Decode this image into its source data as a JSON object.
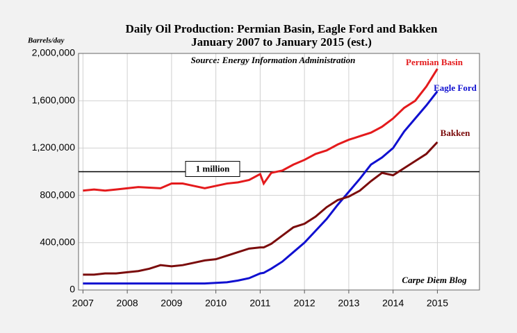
{
  "chart_data": {
    "type": "line",
    "title": "Daily Oil Production: Permian Basin, Eagle Ford and Bakken",
    "subtitle": "January 2007 to January 2015 (est.)",
    "y_label": "Barrels/day",
    "source": "Source: Energy Information Administration",
    "credit": "Carpe Diem Blog",
    "x": [
      2007,
      2007.25,
      2007.5,
      2007.75,
      2008,
      2008.25,
      2008.5,
      2008.75,
      2009,
      2009.25,
      2009.5,
      2009.75,
      2010,
      2010.25,
      2010.5,
      2010.75,
      2011,
      2011.08,
      2011.25,
      2011.5,
      2011.75,
      2012,
      2012.25,
      2012.5,
      2012.75,
      2013,
      2013.25,
      2013.5,
      2013.75,
      2014,
      2014.25,
      2014.5,
      2014.75,
      2015
    ],
    "series": [
      {
        "name": "Permian Basin",
        "color": "#e41a1c",
        "values": [
          840000,
          850000,
          840000,
          850000,
          860000,
          870000,
          865000,
          860000,
          900000,
          900000,
          880000,
          860000,
          880000,
          900000,
          910000,
          930000,
          980000,
          900000,
          990000,
          1010000,
          1060000,
          1100000,
          1150000,
          1180000,
          1230000,
          1270000,
          1300000,
          1330000,
          1380000,
          1450000,
          1540000,
          1600000,
          1720000,
          1870000
        ]
      },
      {
        "name": "Eagle Ford",
        "color": "#1010d0",
        "values": [
          55000,
          55000,
          55000,
          55000,
          55000,
          55000,
          55000,
          55000,
          55000,
          55000,
          55000,
          55000,
          60000,
          65000,
          80000,
          100000,
          140000,
          145000,
          180000,
          240000,
          320000,
          400000,
          500000,
          600000,
          720000,
          830000,
          940000,
          1060000,
          1120000,
          1200000,
          1340000,
          1450000,
          1560000,
          1680000
        ]
      },
      {
        "name": "Bakken",
        "color": "#7b0c0c",
        "values": [
          130000,
          130000,
          140000,
          140000,
          150000,
          160000,
          180000,
          210000,
          200000,
          210000,
          230000,
          250000,
          260000,
          290000,
          320000,
          350000,
          360000,
          360000,
          390000,
          460000,
          530000,
          560000,
          620000,
          700000,
          760000,
          790000,
          840000,
          920000,
          990000,
          970000,
          1030000,
          1090000,
          1150000,
          1250000
        ]
      }
    ],
    "reference_line": {
      "value": 1000000,
      "label": "1 million"
    },
    "xlim": [
      2006.9,
      2015.95
    ],
    "xticks": [
      2007,
      2008,
      2009,
      2010,
      2011,
      2012,
      2013,
      2014,
      2015
    ],
    "ylim": [
      0,
      2000000
    ],
    "yticks": [
      0,
      {
        "value": 400000,
        "label": "400,000"
      },
      {
        "value": 800000,
        "label": "800,000"
      },
      {
        "value": 1200000,
        "label": "1,200,000"
      },
      {
        "value": 1600000,
        "label": "1,600,000"
      },
      {
        "value": 2000000,
        "label": "2,000,000"
      }
    ],
    "grid": true
  }
}
